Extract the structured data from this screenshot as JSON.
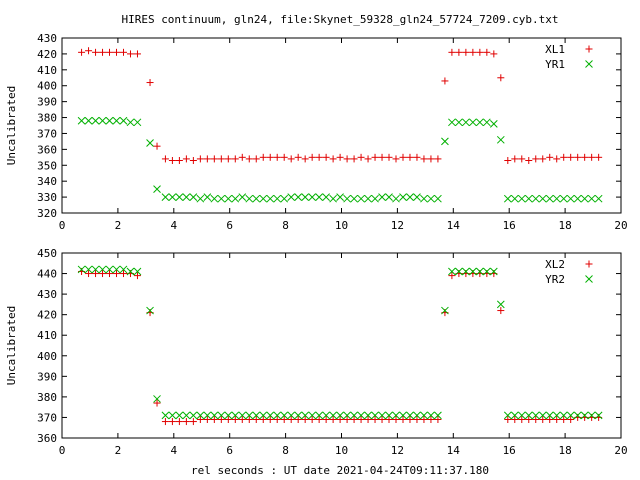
{
  "page": {
    "title": "HIRES continuum, gln24, file:Skynet_59328_gln24_57724_7209.cyb.txt",
    "xlabel": "rel seconds : UT date 2021-04-24T09:11:37.180"
  },
  "colors": {
    "red": "#e00000",
    "green": "#00b000"
  },
  "chart_data": [
    {
      "type": "scatter",
      "ylabel": "Uncalibrated",
      "xlim": [
        0,
        20
      ],
      "ylim": [
        320,
        430
      ],
      "xticks": [
        0,
        2,
        4,
        6,
        8,
        10,
        12,
        14,
        16,
        18,
        20
      ],
      "yticks": [
        320,
        330,
        340,
        350,
        360,
        370,
        380,
        390,
        400,
        410,
        420,
        430
      ],
      "legend_position": "top-right",
      "series": [
        {
          "name": "XL1",
          "marker": "plus",
          "color": "#e00000",
          "x": [
            0.7,
            0.95,
            1.2,
            1.45,
            1.7,
            1.95,
            2.2,
            2.45,
            2.7,
            3.15,
            3.4,
            3.7,
            3.95,
            4.2,
            4.45,
            4.7,
            4.95,
            5.2,
            5.45,
            5.7,
            5.95,
            6.2,
            6.45,
            6.7,
            6.95,
            7.2,
            7.45,
            7.7,
            7.95,
            8.2,
            8.45,
            8.7,
            8.95,
            9.2,
            9.45,
            9.7,
            9.95,
            10.2,
            10.45,
            10.7,
            10.95,
            11.2,
            11.45,
            11.7,
            11.95,
            12.2,
            12.45,
            12.7,
            12.95,
            13.2,
            13.45,
            13.7,
            13.95,
            14.2,
            14.45,
            14.7,
            14.95,
            15.2,
            15.45,
            15.7,
            15.95,
            16.2,
            16.45,
            16.7,
            16.95,
            17.2,
            17.45,
            17.7,
            17.95,
            18.2,
            18.45,
            18.7,
            18.95,
            19.2
          ],
          "y": [
            421,
            422,
            421,
            421,
            421,
            421,
            421,
            420,
            420,
            402,
            362,
            354,
            353,
            353,
            354,
            353,
            354,
            354,
            354,
            354,
            354,
            354,
            355,
            354,
            354,
            355,
            355,
            355,
            355,
            354,
            355,
            354,
            355,
            355,
            355,
            354,
            355,
            354,
            354,
            355,
            354,
            355,
            355,
            355,
            354,
            355,
            355,
            355,
            354,
            354,
            354,
            403,
            421,
            421,
            421,
            421,
            421,
            421,
            420,
            405,
            353,
            354,
            354,
            353,
            354,
            354,
            355,
            354,
            355,
            355,
            355,
            355,
            355,
            355
          ]
        },
        {
          "name": "YR1",
          "marker": "cross",
          "color": "#00b000",
          "x": [
            0.7,
            0.95,
            1.2,
            1.45,
            1.7,
            1.95,
            2.2,
            2.45,
            2.7,
            3.15,
            3.4,
            3.7,
            3.95,
            4.2,
            4.45,
            4.7,
            4.95,
            5.2,
            5.45,
            5.7,
            5.95,
            6.2,
            6.45,
            6.7,
            6.95,
            7.2,
            7.45,
            7.7,
            7.95,
            8.2,
            8.45,
            8.7,
            8.95,
            9.2,
            9.45,
            9.7,
            9.95,
            10.2,
            10.45,
            10.7,
            10.95,
            11.2,
            11.45,
            11.7,
            11.95,
            12.2,
            12.45,
            12.7,
            12.95,
            13.2,
            13.45,
            13.7,
            13.95,
            14.2,
            14.45,
            14.7,
            14.95,
            15.2,
            15.45,
            15.7,
            15.95,
            16.2,
            16.45,
            16.7,
            16.95,
            17.2,
            17.45,
            17.7,
            17.95,
            18.2,
            18.45,
            18.7,
            18.95,
            19.2
          ],
          "y": [
            378,
            378,
            378,
            378,
            378,
            378,
            378,
            377,
            377,
            364,
            335,
            330,
            330,
            330,
            330,
            330,
            329,
            330,
            329,
            329,
            329,
            329,
            330,
            329,
            329,
            329,
            329,
            329,
            329,
            330,
            330,
            330,
            330,
            330,
            330,
            329,
            330,
            329,
            329,
            329,
            329,
            329,
            330,
            330,
            329,
            330,
            330,
            330,
            329,
            329,
            329,
            365,
            377,
            377,
            377,
            377,
            377,
            377,
            376,
            366,
            329,
            329,
            329,
            329,
            329,
            329,
            329,
            329,
            329,
            329,
            329,
            329,
            329,
            329
          ]
        }
      ]
    },
    {
      "type": "scatter",
      "ylabel": "Uncalibrated",
      "xlim": [
        0,
        20
      ],
      "ylim": [
        360,
        450
      ],
      "xticks": [
        0,
        2,
        4,
        6,
        8,
        10,
        12,
        14,
        16,
        18,
        20
      ],
      "yticks": [
        360,
        370,
        380,
        390,
        400,
        410,
        420,
        430,
        440,
        450
      ],
      "legend_position": "top-right",
      "series": [
        {
          "name": "XL2",
          "marker": "plus",
          "color": "#e00000",
          "x": [
            0.7,
            0.95,
            1.2,
            1.45,
            1.7,
            1.95,
            2.2,
            2.45,
            2.7,
            3.15,
            3.4,
            3.7,
            3.95,
            4.2,
            4.45,
            4.7,
            4.95,
            5.2,
            5.45,
            5.7,
            5.95,
            6.2,
            6.45,
            6.7,
            6.95,
            7.2,
            7.45,
            7.7,
            7.95,
            8.2,
            8.45,
            8.7,
            8.95,
            9.2,
            9.45,
            9.7,
            9.95,
            10.2,
            10.45,
            10.7,
            10.95,
            11.2,
            11.45,
            11.7,
            11.95,
            12.2,
            12.45,
            12.7,
            12.95,
            13.2,
            13.45,
            13.7,
            13.95,
            14.2,
            14.45,
            14.7,
            14.95,
            15.2,
            15.45,
            15.7,
            15.95,
            16.2,
            16.45,
            16.7,
            16.95,
            17.2,
            17.45,
            17.7,
            17.95,
            18.2,
            18.45,
            18.7,
            18.95,
            19.2
          ],
          "y": [
            441,
            440,
            440,
            440,
            440,
            440,
            440,
            440,
            439,
            421,
            377,
            368,
            368,
            368,
            368,
            368,
            369,
            369,
            369,
            369,
            369,
            369,
            369,
            369,
            369,
            369,
            369,
            369,
            369,
            369,
            369,
            369,
            369,
            369,
            369,
            369,
            369,
            369,
            369,
            369,
            369,
            369,
            369,
            369,
            369,
            369,
            369,
            369,
            369,
            369,
            369,
            421,
            439,
            440,
            440,
            440,
            440,
            440,
            440,
            422,
            369,
            369,
            369,
            369,
            369,
            369,
            369,
            369,
            369,
            369,
            370,
            370,
            370,
            370
          ]
        },
        {
          "name": "YR2",
          "marker": "cross",
          "color": "#00b000",
          "x": [
            0.7,
            0.95,
            1.2,
            1.45,
            1.7,
            1.95,
            2.2,
            2.45,
            2.7,
            3.15,
            3.4,
            3.7,
            3.95,
            4.2,
            4.45,
            4.7,
            4.95,
            5.2,
            5.45,
            5.7,
            5.95,
            6.2,
            6.45,
            6.7,
            6.95,
            7.2,
            7.45,
            7.7,
            7.95,
            8.2,
            8.45,
            8.7,
            8.95,
            9.2,
            9.45,
            9.7,
            9.95,
            10.2,
            10.45,
            10.7,
            10.95,
            11.2,
            11.45,
            11.7,
            11.95,
            12.2,
            12.45,
            12.7,
            12.95,
            13.2,
            13.45,
            13.7,
            13.95,
            14.2,
            14.45,
            14.7,
            14.95,
            15.2,
            15.45,
            15.7,
            15.95,
            16.2,
            16.45,
            16.7,
            16.95,
            17.2,
            17.45,
            17.7,
            17.95,
            18.2,
            18.45,
            18.7,
            18.95,
            19.2
          ],
          "y": [
            442,
            442,
            442,
            442,
            442,
            442,
            442,
            441,
            441,
            422,
            379,
            371,
            371,
            371,
            371,
            371,
            371,
            371,
            371,
            371,
            371,
            371,
            371,
            371,
            371,
            371,
            371,
            371,
            371,
            371,
            371,
            371,
            371,
            371,
            371,
            371,
            371,
            371,
            371,
            371,
            371,
            371,
            371,
            371,
            371,
            371,
            371,
            371,
            371,
            371,
            371,
            422,
            441,
            441,
            441,
            441,
            441,
            441,
            441,
            425,
            371,
            371,
            371,
            371,
            371,
            371,
            371,
            371,
            371,
            371,
            371,
            371,
            371,
            371
          ]
        }
      ]
    }
  ]
}
